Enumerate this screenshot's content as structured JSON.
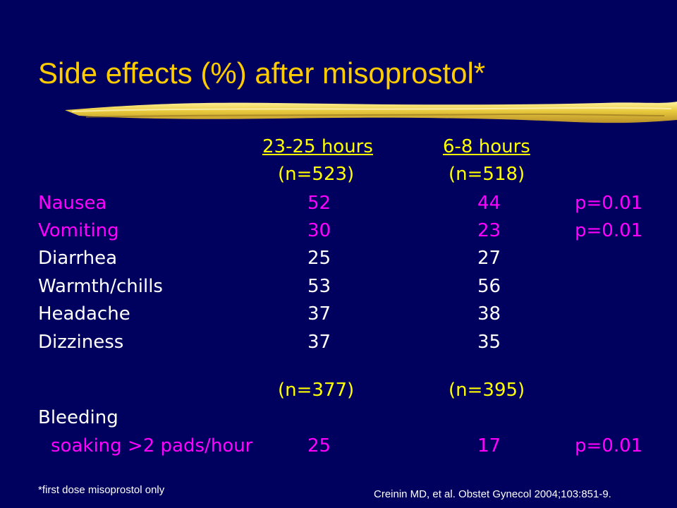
{
  "title": "Side effects (%) after misoprostol*",
  "columns": {
    "col1_header": "23-25 hours ",
    "col1_n": "(n=523)",
    "col2_header": "6-8 hours",
    "col2_n": "(n=518)",
    "col1_n_bleeding": "(n=377)",
    "col2_n_bleeding": "(n=395)"
  },
  "rows": [
    {
      "label": "Nausea",
      "v1": "52",
      "v2": "44",
      "p": "p=0.01"
    },
    {
      "label": "Vomiting",
      "v1": "30",
      "v2": "23",
      "p": "p=0.01"
    },
    {
      "label": "Diarrhea",
      "v1": "25",
      "v2": "27",
      "p": ""
    },
    {
      "label": "Warmth/chills",
      "v1": "53",
      "v2": "56",
      "p": ""
    },
    {
      "label": "Headache",
      "v1": "37",
      "v2": "38",
      "p": ""
    },
    {
      "label": "Dizziness",
      "v1": "37",
      "v2": "35",
      "p": ""
    }
  ],
  "bleeding": {
    "label": "Bleeding",
    "sub_label": "soaking >2 pads/hour",
    "v1": "25",
    "v2": "17",
    "p": "p=0.01"
  },
  "footnote": "*first dose misoprostol only",
  "citation": "Creinin MD, et al. Obstet Gynecol 2004;103:851-9.",
  "colors": {
    "background": "#00005e",
    "title": "#ffcc00",
    "significant": "#ff00ff",
    "normal": "#ffffff",
    "header": "#ffff00"
  }
}
